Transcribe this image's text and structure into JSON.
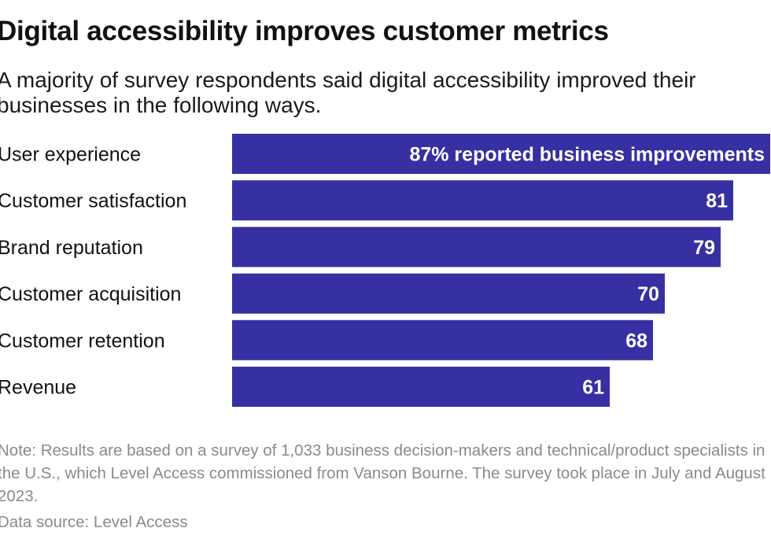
{
  "title": "Digital accessibility improves customer metrics",
  "subtitle": "A majority of survey respondents said digital accessibility improved their businesses in the following ways.",
  "note": "Note: Results are based on a survey of 1,033 business decision-makers and technical/product specialists in the U.S., which Level Access commissioned from Vanson Bourne. The survey took place in July and August 2023.",
  "source": "Data source: Level Access",
  "colors": {
    "bar": "#3730a3",
    "bar_label": "#ffffff",
    "category_label": "#111111"
  },
  "chart_data": {
    "type": "bar",
    "orientation": "horizontal",
    "categories": [
      "User experience",
      "Customer satisfaction",
      "Brand reputation",
      "Customer acquisition",
      "Customer retention",
      "Revenue"
    ],
    "values": [
      87,
      81,
      79,
      70,
      68,
      61
    ],
    "data_labels": [
      "87% reported business improvements",
      "81",
      "79",
      "70",
      "68",
      "61"
    ],
    "unit": "%",
    "xlim": [
      0,
      87
    ],
    "grid": false,
    "legend": "none"
  }
}
